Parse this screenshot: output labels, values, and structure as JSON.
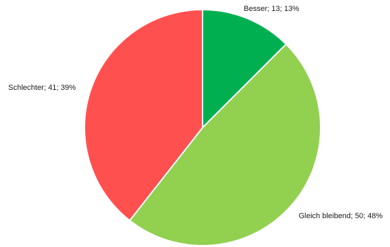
{
  "chart_data": {
    "type": "pie",
    "start_angle_deg": 0,
    "direction": "clockwise",
    "legend": "none",
    "slices": [
      {
        "label": "Besser",
        "value": 13,
        "percent": 13,
        "text": "Besser; 13; 13%",
        "color": "#00b050"
      },
      {
        "label": "Gleich bleibend",
        "value": 50,
        "percent": 48,
        "text": "Gleich bleibend; 50; 48%",
        "color": "#92d050"
      },
      {
        "label": "Schlechter",
        "value": 41,
        "percent": 39,
        "text": "Schlechter; 41; 39%",
        "color": "#ff5050"
      }
    ]
  }
}
